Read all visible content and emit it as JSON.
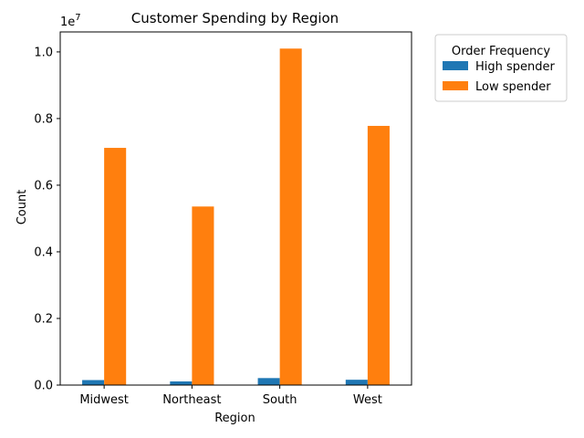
{
  "chart_data": {
    "type": "bar",
    "title": "Customer Spending by Region",
    "xlabel": "Region",
    "ylabel": "Count",
    "scale_note": "1e7",
    "categories": [
      "Midwest",
      "Northeast",
      "South",
      "West"
    ],
    "series": [
      {
        "name": "High spender",
        "color": "#1f77b4",
        "values": [
          150000,
          110000,
          210000,
          160000
        ]
      },
      {
        "name": "Low spender",
        "color": "#ff7f0e",
        "values": [
          7120000,
          5360000,
          10100000,
          7780000
        ]
      }
    ],
    "ylim": [
      0,
      10600000
    ],
    "yticks": [
      {
        "value": 0,
        "label": "0.0"
      },
      {
        "value": 2000000,
        "label": "0.2"
      },
      {
        "value": 4000000,
        "label": "0.4"
      },
      {
        "value": 6000000,
        "label": "0.6"
      },
      {
        "value": 8000000,
        "label": "0.8"
      },
      {
        "value": 10000000,
        "label": "1.0"
      }
    ],
    "legend": {
      "title": "Order Frequency",
      "placement": "outside-top-right"
    },
    "grid": false
  }
}
